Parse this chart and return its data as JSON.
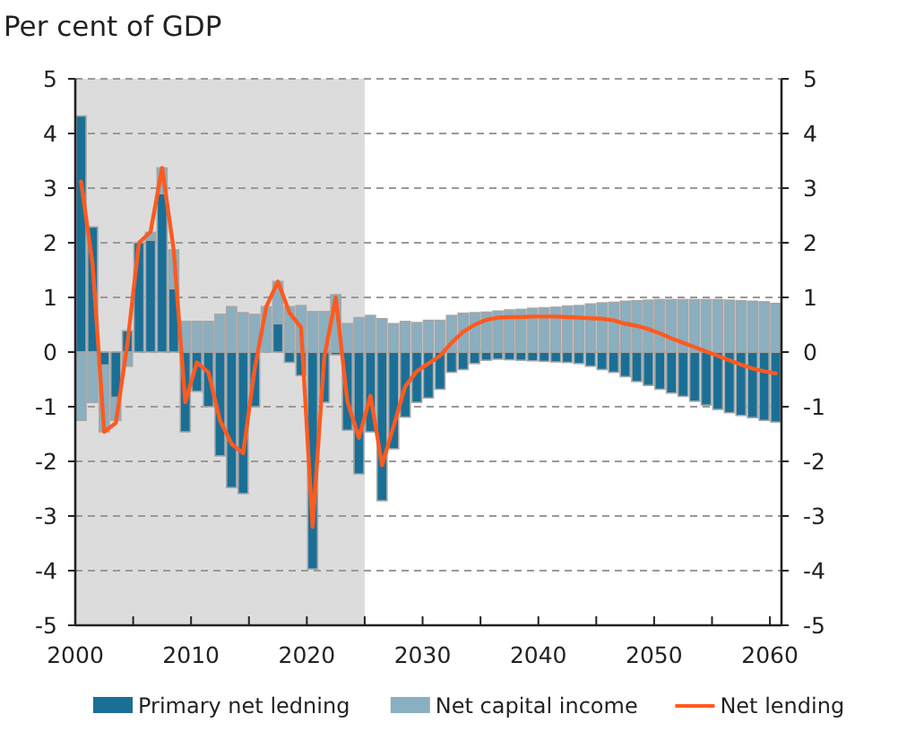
{
  "chart_data": {
    "type": "bar",
    "title": "Per cent of GDP",
    "stacked": true,
    "grid": "y",
    "legend": "bottom",
    "x": [
      2000.5,
      2001.5,
      2002.5,
      2003.5,
      2004.5,
      2005.5,
      2006.5,
      2007.5,
      2008.5,
      2009.5,
      2010.5,
      2011.5,
      2012.5,
      2013.5,
      2014.5,
      2015.5,
      2016.5,
      2017.5,
      2018.5,
      2019.5,
      2020.5,
      2021.5,
      2022.5,
      2023.5,
      2024.5,
      2025.5,
      2026.5,
      2027.5,
      2028.5,
      2029.5,
      2030.5,
      2031.5,
      2032.5,
      2033.5,
      2034.5,
      2035.5,
      2036.5,
      2037.5,
      2038.5,
      2039.5,
      2040.5,
      2041.5,
      2042.5,
      2043.5,
      2044.5,
      2045.5,
      2046.5,
      2047.5,
      2048.5,
      2049.5,
      2050.5,
      2051.5,
      2052.5,
      2053.5,
      2054.5,
      2055.5,
      2056.5,
      2057.5,
      2058.5,
      2059.5,
      2060.5
    ],
    "xlim": [
      2000,
      2061
    ],
    "xticks": [
      2000,
      {
        "value": 2005,
        "label": null
      },
      2010,
      {
        "value": 2015,
        "label": null
      },
      2020,
      {
        "value": 2025,
        "label": null
      },
      2030,
      {
        "value": 2035,
        "label": null
      },
      2040,
      {
        "value": 2045,
        "label": null
      },
      2050,
      {
        "value": 2055,
        "label": null
      },
      2060
    ],
    "ylim": [
      -5,
      5
    ],
    "yticks": [
      -5,
      -4,
      -3,
      -2,
      -1,
      0,
      1,
      2,
      3,
      4,
      5
    ],
    "y2lim": [
      -5,
      5
    ],
    "y2ticks": [
      -5,
      -4,
      -3,
      -2,
      -1,
      0,
      1,
      2,
      3,
      4,
      5
    ],
    "bands": [
      {
        "axis": "x",
        "from": 2000,
        "to": 2025,
        "color": "#dcdcdc"
      }
    ],
    "series": [
      {
        "name": "Primary net ledning",
        "color": "#1a6f96",
        "values": [
          4.32,
          2.29,
          -0.24,
          -0.83,
          0.39,
          2.0,
          2.05,
          2.9,
          1.16,
          -1.46,
          -0.72,
          -1.0,
          -1.9,
          -2.48,
          -2.59,
          -1.0,
          null,
          0.52,
          -0.19,
          -0.43,
          -3.97,
          -0.92,
          -0.05,
          -1.43,
          -2.23,
          -1.46,
          -2.72,
          -1.77,
          -1.19,
          -0.92,
          -0.84,
          -0.68,
          -0.37,
          -0.32,
          -0.21,
          -0.15,
          -0.13,
          -0.14,
          -0.15,
          -0.16,
          -0.17,
          -0.18,
          -0.19,
          -0.21,
          -0.26,
          -0.32,
          -0.37,
          -0.45,
          -0.54,
          -0.61,
          -0.68,
          -0.75,
          -0.81,
          -0.9,
          -0.97,
          -1.05,
          -1.11,
          -1.16,
          -1.2,
          -1.25,
          -1.28
        ]
      },
      {
        "name": "Net capital income",
        "color": "#8aafc0",
        "values": [
          -1.25,
          -0.92,
          -1.22,
          -0.42,
          -0.26,
          0,
          0.14,
          0.47,
          0.71,
          0.56,
          0.56,
          0.56,
          0.69,
          0.83,
          0.72,
          0.69,
          0.83,
          0.77,
          0.83,
          0.85,
          0.74,
          0.74,
          1.05,
          0.52,
          0.63,
          0.67,
          0.61,
          0.52,
          0.56,
          0.54,
          0.58,
          0.58,
          0.67,
          0.71,
          0.72,
          0.73,
          0.75,
          0.77,
          0.78,
          0.8,
          0.81,
          0.82,
          0.84,
          0.85,
          0.88,
          0.9,
          0.91,
          0.93,
          0.94,
          0.95,
          0.96,
          0.96,
          0.96,
          0.96,
          0.96,
          0.96,
          0.95,
          0.94,
          0.93,
          0.92,
          0.89
        ]
      },
      {
        "name": "Net lending",
        "type": "line",
        "color": "#ff5a1f",
        "values": [
          3.12,
          1.6,
          -1.46,
          -1.3,
          0.15,
          2.0,
          2.2,
          3.37,
          1.87,
          -0.92,
          -0.19,
          -0.37,
          -1.25,
          -1.68,
          -1.85,
          -0.3,
          0.83,
          1.29,
          0.72,
          0.45,
          -3.2,
          -0.1,
          1.0,
          -0.9,
          -1.57,
          -0.8,
          -2.07,
          -1.35,
          -0.63,
          -0.35,
          -0.21,
          -0.07,
          0.17,
          0.37,
          0.5,
          0.59,
          0.63,
          0.64,
          0.64,
          0.65,
          0.65,
          0.65,
          0.64,
          0.63,
          0.62,
          0.61,
          0.58,
          0.52,
          0.48,
          0.42,
          0.34,
          0.25,
          0.17,
          0.09,
          0.01,
          -0.07,
          -0.15,
          -0.23,
          -0.3,
          -0.35,
          -0.39
        ]
      }
    ]
  }
}
